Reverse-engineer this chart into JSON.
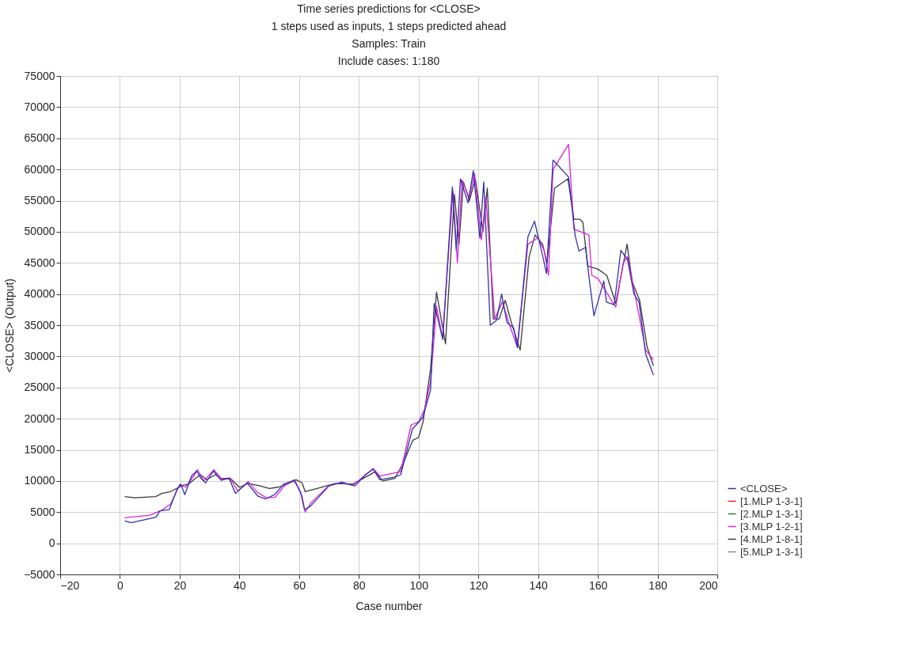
{
  "chart_data": {
    "type": "line",
    "title": "Time series predictions for <CLOSE>\n1 steps used as inputs, 1 steps predicted ahead\nSamples: Train",
    "subtitle": "Include cases: 1:180",
    "xlabel": "Case number",
    "ylabel": "<CLOSE> (Output)",
    "xlim": [
      -20,
      200
    ],
    "xticks": [
      -20,
      0,
      20,
      40,
      60,
      80,
      100,
      120,
      140,
      160,
      180,
      200
    ],
    "ylim": [
      -5000,
      75000
    ],
    "yticks": [
      -5000,
      0,
      5000,
      10000,
      15000,
      20000,
      25000,
      30000,
      35000,
      40000,
      45000,
      50000,
      55000,
      60000,
      65000,
      70000,
      75000
    ],
    "grid": true,
    "legend": "bottom right",
    "line_style": "solid",
    "marker": "none",
    "series": [
      {
        "name": "[5.MLP 1-3-1]",
        "color": "#8a8a8a"
      },
      {
        "name": "[4.MLP 1-8-1]",
        "color": "#3a3a3a",
        "x": [
          1.6,
          5,
          12,
          14,
          17,
          21,
          23,
          25,
          27,
          29,
          32,
          34,
          37,
          40,
          43,
          47,
          50,
          53,
          56,
          59,
          61,
          62,
          66,
          72,
          78,
          85.5,
          88,
          92,
          95,
          98,
          100,
          101.5,
          104,
          106,
          109,
          112,
          113.5,
          115,
          117,
          119,
          121.5,
          123,
          125,
          127,
          129,
          131,
          134,
          137,
          139,
          141.5,
          143,
          145.5,
          150,
          152,
          154,
          155,
          156.6,
          160,
          163,
          166,
          169.8,
          171.5,
          174,
          176.5,
          178.6
        ],
        "values": [
          7500,
          7300,
          7500,
          8000,
          8300,
          9300,
          9500,
          10300,
          11000,
          10200,
          11000,
          10400,
          10400,
          9000,
          9600,
          9200,
          8800,
          9000,
          9500,
          10200,
          9700,
          8300,
          8800,
          9600,
          9500,
          11500,
          10000,
          10400,
          13000,
          16500,
          17000,
          19500,
          28000,
          40300,
          32000,
          56000,
          48000,
          58000,
          55000,
          58500,
          50000,
          57000,
          36000,
          36000,
          39000,
          35500,
          31000,
          46000,
          49500,
          48000,
          45000,
          57000,
          58500,
          52000,
          52000,
          51500,
          44500,
          44000,
          43000,
          38500,
          48000,
          42000,
          39000,
          31500,
          28500
        ]
      },
      {
        "name": "[3.MLP 1-2-1]",
        "color": "#dd22dd",
        "x": [
          1.6,
          10,
          14,
          17,
          20,
          22,
          25,
          26,
          28,
          31.5,
          34,
          37,
          39.5,
          43,
          46,
          49,
          52,
          55,
          58.5,
          61,
          62,
          64,
          70,
          74,
          78,
          84.8,
          87,
          94,
          97.5,
          100,
          102,
          104,
          106,
          108,
          111.5,
          113,
          114.5,
          117,
          118.7,
          121,
          122.5,
          125.5,
          128,
          130.5,
          133,
          136.6,
          140,
          142,
          143.5,
          145,
          150.2,
          152,
          157,
          158,
          160,
          166,
          168.5,
          170,
          176,
          178.6
        ],
        "values": [
          4100,
          4500,
          5300,
          6300,
          9400,
          9000,
          11000,
          11800,
          10000,
          11800,
          10300,
          10300,
          8400,
          9900,
          8200,
          7300,
          7400,
          9200,
          10200,
          7500,
          5000,
          6500,
          9300,
          9700,
          9300,
          12000,
          10800,
          11500,
          19000,
          19500,
          21500,
          26000,
          38000,
          33000,
          56500,
          45000,
          58300,
          55400,
          59400,
          48700,
          55500,
          36000,
          38700,
          35000,
          31500,
          48000,
          49000,
          47000,
          43000,
          60000,
          64000,
          50400,
          49500,
          43000,
          42500,
          37900,
          45000,
          46000,
          31000,
          29500
        ]
      },
      {
        "name": "[2.MLP 1-3-1]",
        "color": "#2e7d32"
      },
      {
        "name": "[1.MLP 1-3-1]",
        "color": "#dd2222"
      },
      {
        "name": "<CLOSE>",
        "color": "#3333aa",
        "x": [
          1.6,
          3.8,
          12.1,
          13.4,
          16.5,
          19.1,
          20.4,
          21.7,
          24,
          25.7,
          27,
          28.7,
          31.3,
          33.9,
          36.5,
          38.7,
          42.6,
          46.1,
          48.7,
          51.8,
          54.8,
          58.3,
          60.5,
          61.8,
          63.9,
          70,
          74.3,
          78.7,
          82.2,
          84.8,
          87,
          91.8,
          94,
          97.9,
          101.4,
          104,
          105.2,
          108.1,
          111.3,
          112.6,
          114,
          116.6,
          118.3,
          120.5,
          121.8,
          124,
          126.1,
          127.8,
          129.6,
          131.8,
          133.1,
          136.6,
          138.8,
          141.5,
          142.8,
          145,
          150.2,
          152.4,
          153.7,
          155.9,
          157.2,
          158.7,
          162,
          162.9,
          165.5,
          167.7,
          169.9,
          172.1,
          173.8,
          176,
          178.6
        ],
        "values": [
          3600,
          3300,
          4200,
          5200,
          5400,
          8600,
          9500,
          7800,
          10800,
          11600,
          10500,
          9700,
          11600,
          10100,
          10500,
          8000,
          9700,
          7600,
          7100,
          7800,
          9500,
          10100,
          8200,
          5400,
          6000,
          9200,
          9800,
          9200,
          11000,
          11900,
          10200,
          10600,
          11000,
          18300,
          20200,
          24600,
          38500,
          32700,
          57200,
          47000,
          58500,
          54600,
          59800,
          49000,
          58000,
          35000,
          35800,
          40000,
          35400,
          34600,
          31400,
          49200,
          51700,
          46200,
          43300,
          61500,
          58800,
          49400,
          46900,
          47500,
          42100,
          36500,
          42100,
          38700,
          38300,
          47000,
          45600,
          40000,
          38700,
          30400,
          27000
        ]
      }
    ]
  }
}
